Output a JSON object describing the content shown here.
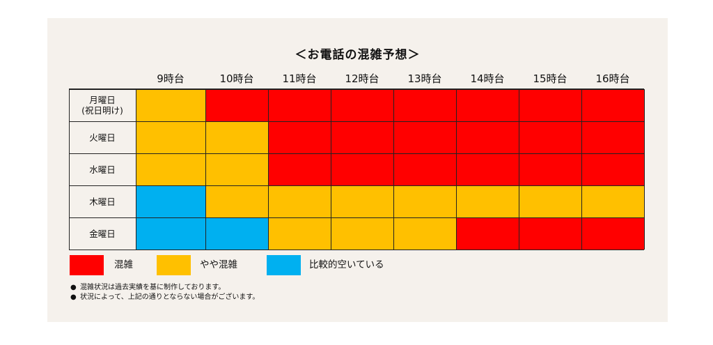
{
  "chart_data": {
    "type": "heatmap",
    "title": "＜お電話の混雑予想＞",
    "columns": [
      "9時台",
      "10時台",
      "11時台",
      "12時台",
      "13時台",
      "14時台",
      "15時台",
      "16時台"
    ],
    "rows": [
      "月曜日\n(祝日明け)",
      "火曜日",
      "水曜日",
      "木曜日",
      "金曜日"
    ],
    "values": [
      [
        "やや混雑",
        "混雑",
        "混雑",
        "混雑",
        "混雑",
        "混雑",
        "混雑",
        "混雑"
      ],
      [
        "やや混雑",
        "やや混雑",
        "混雑",
        "混雑",
        "混雑",
        "混雑",
        "混雑",
        "混雑"
      ],
      [
        "やや混雑",
        "やや混雑",
        "混雑",
        "混雑",
        "混雑",
        "混雑",
        "混雑",
        "混雑"
      ],
      [
        "比較的空いている",
        "やや混雑",
        "やや混雑",
        "やや混雑",
        "やや混雑",
        "やや混雑",
        "やや混雑",
        "やや混雑"
      ],
      [
        "比較的空いている",
        "比較的空いている",
        "やや混雑",
        "やや混雑",
        "やや混雑",
        "混雑",
        "混雑",
        "混雑"
      ]
    ],
    "legend": [
      {
        "label": "混雑",
        "color": "#ff0000"
      },
      {
        "label": "やや混雑",
        "color": "#ffc000"
      },
      {
        "label": "比較的空いている",
        "color": "#00b0f0"
      }
    ]
  },
  "notes": [
    "混雑状況は過去実績を基に制作しております。",
    "状況によって、上記の通りとならない場合がございます。"
  ],
  "bullet": "●",
  "colors": {
    "panel_background": "#f5f1ec",
    "grid_line": "#222222"
  }
}
